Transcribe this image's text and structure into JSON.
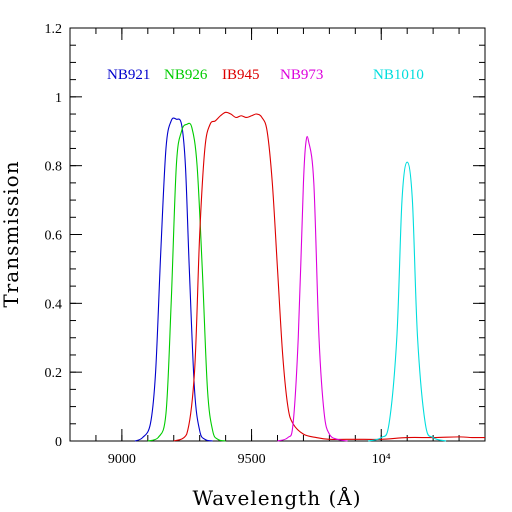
{
  "chart_data": {
    "type": "line",
    "title": "",
    "xlabel": "Wavelength (Å)",
    "ylabel": "Transmission",
    "xlim": [
      8800,
      10400
    ],
    "ylim": [
      0,
      1.2
    ],
    "x_ticks": [
      {
        "value": 9000,
        "label": "9000"
      },
      {
        "value": 9500,
        "label": "9500"
      },
      {
        "value": 10000,
        "label": "10⁴"
      }
    ],
    "y_ticks": [
      {
        "value": 0,
        "label": "0"
      },
      {
        "value": 0.2,
        "label": "0.2"
      },
      {
        "value": 0.4,
        "label": "0.4"
      },
      {
        "value": 0.6,
        "label": "0.6"
      },
      {
        "value": 0.8,
        "label": "0.8"
      },
      {
        "value": 1,
        "label": "1"
      },
      {
        "value": 1.2,
        "label": "1.2"
      }
    ],
    "x_minor_step": 100,
    "y_minor_step": 0.05,
    "legend_placement": "top (above curves, inline)",
    "grid": false,
    "series": [
      {
        "name": "NB921",
        "color": "#0000cc",
        "points": [
          [
            9050,
            0
          ],
          [
            9080,
            0.01
          ],
          [
            9110,
            0.05
          ],
          [
            9130,
            0.2
          ],
          [
            9150,
            0.55
          ],
          [
            9170,
            0.85
          ],
          [
            9190,
            0.93
          ],
          [
            9210,
            0.935
          ],
          [
            9230,
            0.92
          ],
          [
            9245,
            0.8
          ],
          [
            9260,
            0.5
          ],
          [
            9280,
            0.15
          ],
          [
            9300,
            0.03
          ],
          [
            9320,
            0.005
          ],
          [
            9350,
            0
          ]
        ]
      },
      {
        "name": "NB926",
        "color": "#00cc00",
        "points": [
          [
            9100,
            0
          ],
          [
            9140,
            0.01
          ],
          [
            9170,
            0.08
          ],
          [
            9190,
            0.4
          ],
          [
            9210,
            0.8
          ],
          [
            9230,
            0.9
          ],
          [
            9250,
            0.92
          ],
          [
            9270,
            0.91
          ],
          [
            9290,
            0.8
          ],
          [
            9310,
            0.5
          ],
          [
            9330,
            0.15
          ],
          [
            9350,
            0.03
          ],
          [
            9370,
            0.005
          ],
          [
            9400,
            0
          ]
        ]
      },
      {
        "name": "IB945",
        "color": "#dd0000",
        "points": [
          [
            9200,
            0
          ],
          [
            9250,
            0.02
          ],
          [
            9280,
            0.2
          ],
          [
            9300,
            0.6
          ],
          [
            9320,
            0.85
          ],
          [
            9340,
            0.92
          ],
          [
            9360,
            0.93
          ],
          [
            9380,
            0.945
          ],
          [
            9400,
            0.955
          ],
          [
            9420,
            0.95
          ],
          [
            9440,
            0.94
          ],
          [
            9460,
            0.945
          ],
          [
            9480,
            0.94
          ],
          [
            9500,
            0.945
          ],
          [
            9520,
            0.95
          ],
          [
            9540,
            0.94
          ],
          [
            9560,
            0.9
          ],
          [
            9580,
            0.75
          ],
          [
            9600,
            0.5
          ],
          [
            9620,
            0.25
          ],
          [
            9640,
            0.1
          ],
          [
            9660,
            0.05
          ],
          [
            9700,
            0.02
          ],
          [
            9750,
            0.01
          ],
          [
            9800,
            0.005
          ],
          [
            9900,
            0.005
          ],
          [
            10000,
            0.005
          ],
          [
            10100,
            0.01
          ],
          [
            10200,
            0.01
          ],
          [
            10300,
            0.012
          ],
          [
            10350,
            0.01
          ],
          [
            10400,
            0.01
          ]
        ]
      },
      {
        "name": "NB973",
        "color": "#dd00dd",
        "points": [
          [
            9600,
            0
          ],
          [
            9640,
            0.01
          ],
          [
            9660,
            0.05
          ],
          [
            9680,
            0.3
          ],
          [
            9700,
            0.75
          ],
          [
            9710,
            0.87
          ],
          [
            9720,
            0.87
          ],
          [
            9740,
            0.75
          ],
          [
            9760,
            0.3
          ],
          [
            9780,
            0.08
          ],
          [
            9800,
            0.02
          ],
          [
            9830,
            0.005
          ],
          [
            9870,
            0
          ]
        ]
      },
      {
        "name": "NB1010",
        "color": "#00dddd",
        "points": [
          [
            9950,
            0
          ],
          [
            10000,
            0.01
          ],
          [
            10030,
            0.05
          ],
          [
            10060,
            0.3
          ],
          [
            10080,
            0.7
          ],
          [
            10100,
            0.81
          ],
          [
            10120,
            0.7
          ],
          [
            10140,
            0.3
          ],
          [
            10170,
            0.05
          ],
          [
            10200,
            0.01
          ],
          [
            10250,
            0
          ]
        ]
      }
    ]
  }
}
